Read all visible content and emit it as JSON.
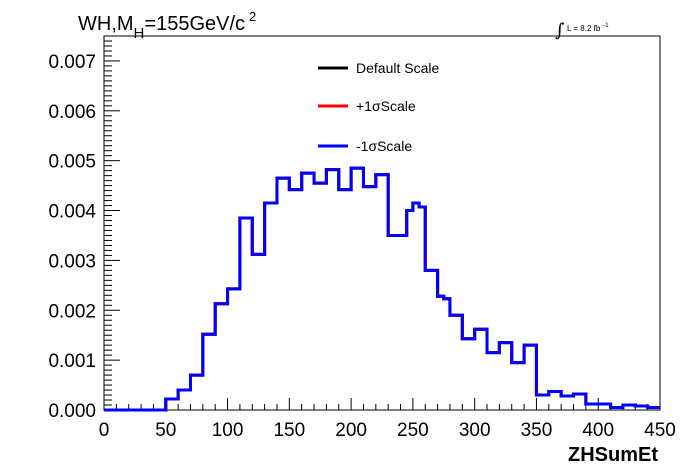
{
  "header": {
    "title_prefix": "WH,M",
    "title_sub": "H",
    "title_value": "=155GeV/c",
    "title_sup": "2",
    "lumi_integral": "∫",
    "lumi_text": "L = 8.2 fb",
    "lumi_sup": "-1"
  },
  "chart_data": {
    "type": "line",
    "xlabel": "ZHSumEt",
    "ylabel": "",
    "xlim": [
      0,
      450
    ],
    "ylim": [
      0,
      0.0075
    ],
    "x_ticks": [
      "0",
      "50",
      "100",
      "150",
      "200",
      "250",
      "300",
      "350",
      "400",
      "450"
    ],
    "y_ticks": [
      "0.000",
      "0.001",
      "0.002",
      "0.003",
      "0.004",
      "0.005",
      "0.006",
      "0.007"
    ],
    "bin_edges": [
      0,
      5,
      10,
      15,
      20,
      25,
      30,
      35,
      40,
      45,
      50,
      55,
      60,
      65,
      70,
      75,
      80,
      85,
      90,
      95,
      100,
      105,
      110,
      115,
      120,
      125,
      130,
      135,
      140,
      145,
      150,
      155,
      160,
      165,
      170,
      175,
      180,
      185,
      190,
      195,
      200,
      205,
      210,
      215,
      220,
      225,
      230,
      235,
      240,
      245,
      250,
      255,
      260,
      265,
      270,
      275,
      280,
      285,
      290,
      295,
      300,
      305,
      310,
      315,
      320,
      325,
      330,
      335,
      340,
      345,
      350,
      355,
      360,
      365,
      370,
      375,
      380,
      385,
      390,
      395,
      400,
      405,
      410,
      415,
      420,
      425,
      430,
      435,
      440,
      445,
      450
    ],
    "legend_position": "top-center",
    "grid": false,
    "series": [
      {
        "name": "Default Scale",
        "color": "#000000",
        "values": [
          0,
          0,
          0,
          0,
          0,
          0,
          0,
          0,
          0,
          0,
          0.00022,
          0.00022,
          0.0004,
          0.0004,
          0.0007,
          0.0007,
          0.00152,
          0.00152,
          0.00213,
          0.00213,
          0.00243,
          0.00243,
          0.00385,
          0.00385,
          0.00312,
          0.00312,
          0.00415,
          0.00415,
          0.00465,
          0.00465,
          0.00442,
          0.00442,
          0.00475,
          0.00475,
          0.00455,
          0.00455,
          0.00482,
          0.00482,
          0.00442,
          0.00442,
          0.00485,
          0.00485,
          0.00448,
          0.00448,
          0.00472,
          0.00472,
          0.0035,
          0.0035,
          0.0035,
          0.004,
          0.00415,
          0.00407,
          0.0028,
          0.0028,
          0.00228,
          0.00223,
          0.0019,
          0.0019,
          0.00143,
          0.00143,
          0.00162,
          0.00162,
          0.00115,
          0.00115,
          0.00135,
          0.00135,
          0.00095,
          0.00095,
          0.0013,
          0.0013,
          0.0003,
          0.0003,
          0.00037,
          0.00037,
          0.00028,
          0.00028,
          0.00032,
          0.00032,
          0.00012,
          0.00012,
          0.00012,
          0.00012,
          5e-05,
          5e-05,
          0.0001,
          0.0001,
          8e-05,
          8e-05,
          5e-05,
          5e-05
        ]
      },
      {
        "name": "+1σScale",
        "color": "#ff0000",
        "values": []
      },
      {
        "name": "-1σScale",
        "color": "#0000ff",
        "values": []
      }
    ]
  }
}
